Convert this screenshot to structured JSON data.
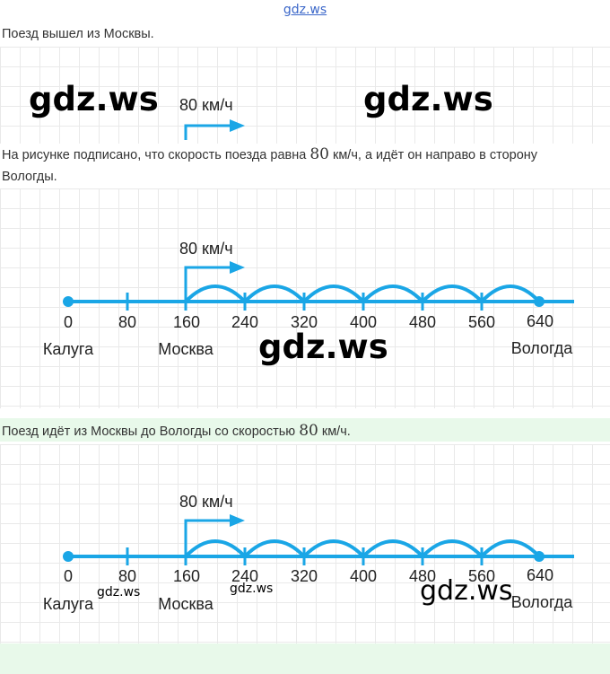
{
  "site_link": "gdz.ws",
  "sentence1": "Поезд вышел из Москвы.",
  "sentence2_pre": "На рисунке подписано, что скорость поезда равна ",
  "sentence2_num": "80",
  "sentence2_post": " км/ч, а идёт он направо в сторону",
  "sentence2_line2": "Вологды.",
  "sentence3_pre": "Поезд идёт из Москвы до Вологды со скоростью ",
  "sentence3_num": "80",
  "sentence3_post": " км/ч.",
  "speed_label": "80 км/ч",
  "watermark": "gdz.ws",
  "ticks": [
    "0",
    "80",
    "160",
    "240",
    "320",
    "400",
    "480",
    "560",
    "640"
  ],
  "city_start": "Калуга",
  "city_mid": "Москва",
  "city_end": "Вологда",
  "colors": {
    "line": "#1aa6e6",
    "link": "#3b67c9",
    "highlight": "#e8f9ea"
  }
}
